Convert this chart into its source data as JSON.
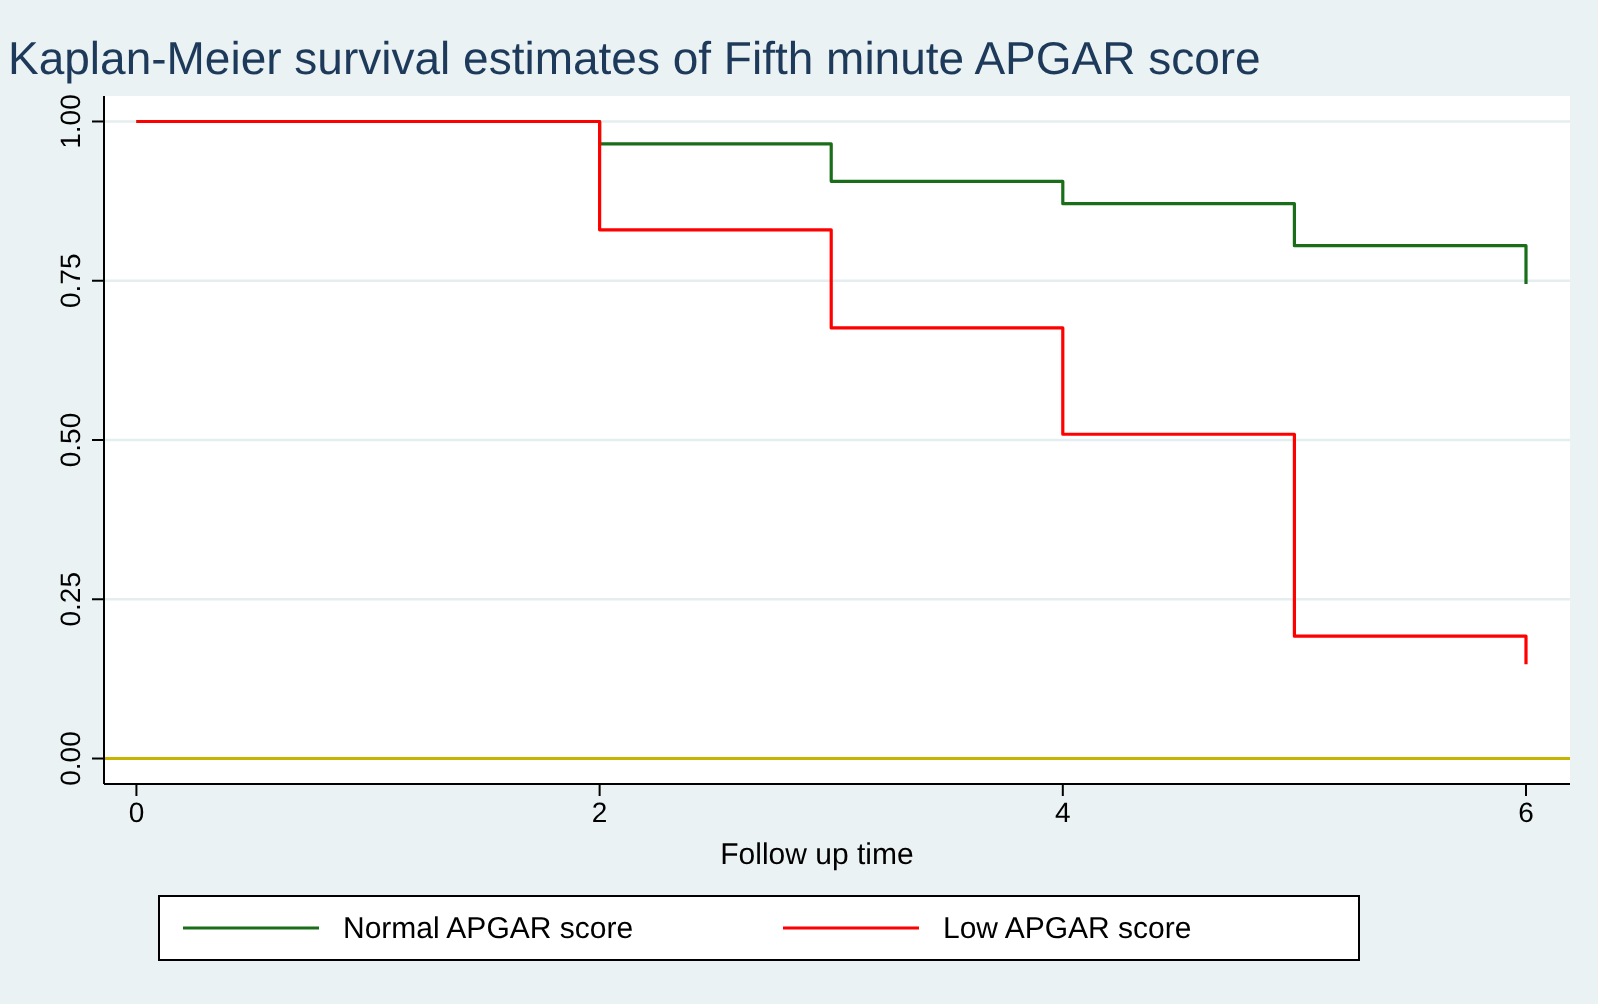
{
  "chart_data": {
    "type": "step",
    "title": "Kaplan-Meier survival estimates of Fifth minute APGAR score",
    "xlabel": "Follow up time",
    "x": [
      0,
      2,
      3,
      4,
      5,
      6
    ],
    "series": [
      {
        "name": "Normal APGAR score",
        "color": "#1a6e1a",
        "values": [
          1,
          0.965,
          0.906,
          0.871,
          0.805,
          0.745
        ]
      },
      {
        "name": "Low APGAR score",
        "color": "#ff0000",
        "values": [
          1,
          0.83,
          0.676,
          0.509,
          0.192,
          0.148
        ]
      }
    ],
    "xlim": [
      -0.14,
      6.19
    ],
    "ylim": [
      -0.04,
      1.04
    ],
    "xticks": [
      0,
      2,
      4,
      6
    ],
    "yticks": [
      {
        "value": 0,
        "label": "0.00"
      },
      {
        "value": 0.25,
        "label": "0.25"
      },
      {
        "value": 0.5,
        "label": "0.50"
      },
      {
        "value": 0.75,
        "label": "0.75"
      },
      {
        "value": 1,
        "label": "1.00"
      }
    ],
    "ref_lines": [
      {
        "axis": "y",
        "value": 0,
        "color": "#c8b400"
      }
    ],
    "grid": "y",
    "legend": "bottom"
  }
}
